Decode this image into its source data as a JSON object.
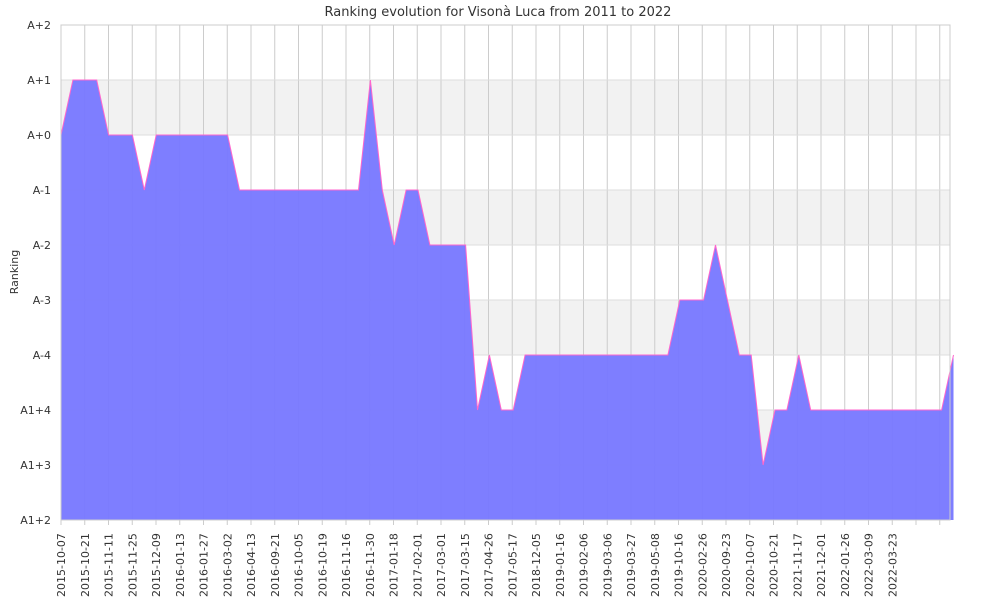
{
  "chart_data": {
    "type": "area",
    "title": "Ranking evolution for Visonà Luca from 2011 to 2022",
    "ylabel": "Ranking",
    "xlabel": "",
    "y_levels": [
      "A1+2",
      "A1+3",
      "A1+4",
      "A-4",
      "A-3",
      "A-2",
      "A-1",
      "A+0",
      "A+1",
      "A+2"
    ],
    "x_ticks": [
      "2015-10-07",
      "2015-10-21",
      "2015-11-11",
      "2015-11-25",
      "2015-12-09",
      "2016-01-13",
      "2016-01-27",
      "2016-03-02",
      "2016-04-13",
      "2016-09-21",
      "2016-10-05",
      "2016-10-19",
      "2016-11-16",
      "2016-11-30",
      "2017-01-18",
      "2017-02-01",
      "2017-03-01",
      "2017-03-15",
      "2017-04-26",
      "2017-05-17",
      "2018-12-05",
      "2019-01-16",
      "2019-02-06",
      "2019-03-06",
      "2019-03-27",
      "2019-05-08",
      "2019-10-16",
      "2020-02-26",
      "2020-09-23",
      "2020-10-07",
      "2020-10-21",
      "2021-11-17",
      "2021-12-01",
      "2022-01-26",
      "2022-03-09",
      "2022-03-23"
    ],
    "series": [
      {
        "points": [
          [
            "",
            "A+0"
          ],
          [
            "",
            "A+1"
          ],
          [
            "",
            "A+1"
          ],
          [
            "",
            "A+1"
          ],
          [
            "",
            "A+0"
          ],
          [
            "",
            "A+0"
          ],
          [
            "",
            "A+0"
          ],
          [
            "",
            "A-1"
          ],
          [
            "",
            "A+0"
          ],
          [
            "",
            "A+0"
          ],
          [
            "",
            "A+0"
          ],
          [
            "",
            "A+0"
          ],
          [
            "",
            "A+0"
          ],
          [
            "",
            "A+0"
          ],
          [
            "",
            "A+0"
          ],
          [
            "",
            "A-1"
          ],
          [
            "",
            "A-1"
          ],
          [
            "",
            "A-1"
          ],
          [
            "",
            "A-1"
          ],
          [
            "",
            "A-1"
          ],
          [
            "",
            "A-1"
          ],
          [
            "",
            "A-1"
          ],
          [
            "",
            "A-1"
          ],
          [
            "",
            "A-1"
          ],
          [
            "",
            "A-1"
          ],
          [
            "",
            "A-1"
          ],
          [
            "",
            "A+1"
          ],
          [
            "",
            "A-1"
          ],
          [
            "",
            "A-2"
          ],
          [
            "",
            "A-1"
          ],
          [
            "",
            "A-1"
          ],
          [
            "",
            "A-2"
          ],
          [
            "",
            "A-2"
          ],
          [
            "",
            "A-2"
          ],
          [
            "",
            "A-2"
          ],
          [
            "",
            "A1+4"
          ],
          [
            "",
            "A-4"
          ],
          [
            "",
            "A1+4"
          ],
          [
            "",
            "A1+4"
          ],
          [
            "",
            "A-4"
          ],
          [
            "",
            "A-4"
          ],
          [
            "",
            "A-4"
          ],
          [
            "",
            "A-4"
          ],
          [
            "",
            "A-4"
          ],
          [
            "",
            "A-4"
          ],
          [
            "",
            "A-4"
          ],
          [
            "",
            "A-4"
          ],
          [
            "",
            "A-4"
          ],
          [
            "",
            "A-4"
          ],
          [
            "",
            "A-4"
          ],
          [
            "",
            "A-4"
          ],
          [
            "",
            "A-4"
          ],
          [
            "",
            "A-3"
          ],
          [
            "",
            "A-3"
          ],
          [
            "",
            "A-3"
          ],
          [
            "",
            "A-2"
          ],
          [
            "",
            "A-3"
          ],
          [
            "",
            "A-4"
          ],
          [
            "",
            "A-4"
          ],
          [
            "",
            "A1+3"
          ],
          [
            "",
            "A1+4"
          ],
          [
            "",
            "A1+4"
          ],
          [
            "",
            "A-4"
          ],
          [
            "",
            "A1+4"
          ],
          [
            "",
            "A1+4"
          ],
          [
            "",
            "A1+4"
          ],
          [
            "",
            "A1+4"
          ],
          [
            "",
            "A1+4"
          ],
          [
            "",
            "A1+4"
          ],
          [
            "",
            "A1+4"
          ],
          [
            "",
            "A1+4"
          ],
          [
            "",
            "A1+4"
          ],
          [
            "",
            "A1+4"
          ],
          [
            "",
            "A1+4"
          ],
          [
            "",
            "A1+4"
          ],
          [
            "",
            "A-4"
          ]
        ]
      }
    ],
    "colors": {
      "fill": "#7777ff",
      "line": "#ff66cc",
      "band": "#f2f2f2",
      "grid": "#cccccc"
    },
    "grid": true,
    "legend": "none"
  }
}
